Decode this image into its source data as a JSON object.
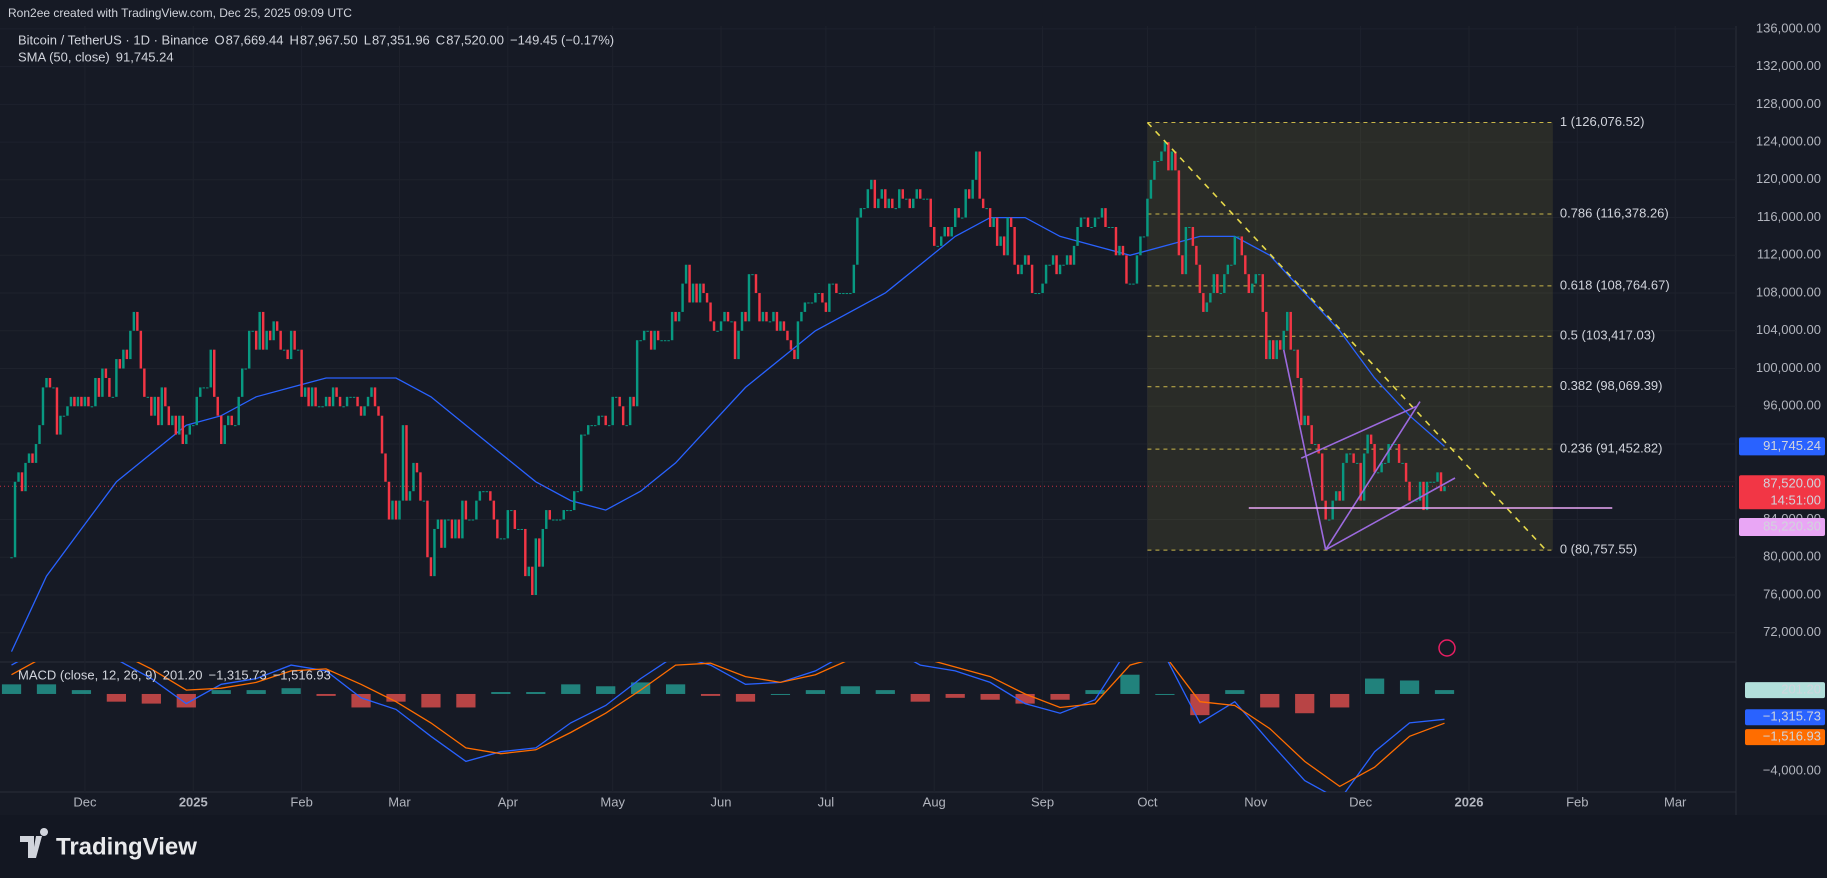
{
  "chart_data": {
    "type": "candlestick",
    "credit": "Ron2ee created with TradingView.com, Dec 25, 2025 09:09 UTC",
    "title": "Bitcoin / TetherUS · 1D · Binance",
    "ohlc": [
      {
        "label": "O",
        "value": "87,669.44"
      },
      {
        "label": "H",
        "value": "87,967.50"
      },
      {
        "label": "L",
        "value": "87,351.96"
      },
      {
        "label": "C",
        "value": "87,520.00"
      }
    ],
    "change": "−149.45 (−0.17%)",
    "up_color": "#089981",
    "down_color": "#f23645",
    "close": [
      80000,
      88000,
      89000,
      87000,
      90000,
      91000,
      90000,
      92000,
      94000,
      98000,
      99000,
      98000,
      98000,
      93000,
      95000,
      95000,
      96000,
      97000,
      96000,
      97000,
      96000,
      97000,
      96000,
      96000,
      99000,
      97000,
      100000,
      99000,
      97000,
      97000,
      101000,
      100000,
      102000,
      101000,
      104000,
      106000,
      104000,
      100000,
      97000,
      97000,
      95000,
      97000,
      94000,
      98000,
      96000,
      94000,
      95000,
      93000,
      95000,
      92000,
      93000,
      94000,
      94000,
      97000,
      98000,
      98000,
      98000,
      102000,
      97000,
      95000,
      92000,
      94000,
      95000,
      94000,
      94000,
      97000,
      100000,
      100000,
      104000,
      104000,
      102000,
      106000,
      102000,
      104000,
      103000,
      105000,
      104000,
      102000,
      102000,
      101000,
      104000,
      102000,
      102000,
      97000,
      98000,
      96000,
      98000,
      96000,
      96000,
      96000,
      97000,
      96000,
      98000,
      97000,
      96000,
      96000,
      97000,
      97000,
      97000,
      96000,
      95000,
      96000,
      97000,
      98000,
      96000,
      95000,
      91000,
      88000,
      84000,
      86000,
      84000,
      86000,
      94000,
      86000,
      87000,
      90000,
      89000,
      86000,
      86000,
      80000,
      78000,
      83000,
      84000,
      81000,
      84000,
      84000,
      82000,
      84000,
      82000,
      86000,
      84000,
      84000,
      84000,
      86000,
      87000,
      87000,
      87000,
      86000,
      84000,
      82000,
      82000,
      82000,
      85000,
      85000,
      83000,
      83000,
      83000,
      78000,
      79000,
      76000,
      82000,
      79000,
      83000,
      85000,
      84000,
      84000,
      84000,
      84000,
      85000,
      85000,
      85000,
      87000,
      87000,
      93000,
      93000,
      94000,
      94000,
      94000,
      95000,
      95000,
      94000,
      94000,
      97000,
      97000,
      96000,
      94000,
      94000,
      97000,
      96000,
      103000,
      103000,
      104000,
      104000,
      102000,
      104000,
      103000,
      103000,
      103000,
      103000,
      106000,
      105000,
      106000,
      109000,
      111000,
      107000,
      109000,
      107000,
      109000,
      108000,
      107000,
      105000,
      104000,
      104000,
      105000,
      106000,
      105000,
      105000,
      101000,
      104000,
      106000,
      105000,
      110000,
      110000,
      108000,
      105000,
      106000,
      105000,
      105000,
      106000,
      104000,
      105000,
      104000,
      103000,
      102000,
      101000,
      105000,
      106000,
      107000,
      107000,
      107000,
      108000,
      108000,
      107000,
      106000,
      109000,
      109000,
      108000,
      108000,
      108000,
      108000,
      108000,
      111000,
      116000,
      117000,
      117000,
      119000,
      120000,
      117000,
      118000,
      119000,
      117000,
      118000,
      117000,
      117000,
      119000,
      118000,
      118000,
      117000,
      118000,
      119000,
      118000,
      118000,
      118000,
      115000,
      113000,
      113000,
      114000,
      115000,
      114000,
      115000,
      117000,
      116000,
      116000,
      119000,
      118000,
      120000,
      123000,
      118000,
      117000,
      117000,
      115000,
      116000,
      113000,
      114000,
      112000,
      116000,
      115000,
      111000,
      110000,
      111000,
      112000,
      111000,
      108000,
      108000,
      108000,
      109000,
      111000,
      111000,
      112000,
      110000,
      111000,
      111000,
      112000,
      111000,
      113000,
      115000,
      116000,
      116000,
      115000,
      115000,
      116000,
      116000,
      117000,
      115000,
      115000,
      115000,
      112000,
      113000,
      112000,
      109000,
      109000,
      109000,
      112000,
      114000,
      114000,
      118000,
      120000,
      122000,
      122000,
      123000,
      124000,
      121000,
      123000,
      121000,
      112000,
      110000,
      115000,
      115000,
      113000,
      111000,
      108000,
      106000,
      107000,
      108000,
      110000,
      108000,
      108000,
      110000,
      111000,
      111000,
      114000,
      114000,
      112000,
      110000,
      108000,
      109000,
      110000,
      110000,
      106000,
      101000,
      103000,
      101000,
      103000,
      102000,
      104000,
      106000,
      102000,
      102000,
      99000,
      94000,
      95000,
      94000,
      92000,
      92000,
      91000,
      86000,
      84000,
      84000,
      86000,
      87000,
      86000,
      90000,
      91000,
      91000,
      90000,
      90000,
      86000,
      91000,
      93000,
      92000,
      89000,
      89000,
      90000,
      90000,
      92000,
      92000,
      92000,
      90000,
      90000,
      88000,
      86000,
      86000,
      86000,
      88000,
      85000,
      88000,
      88000,
      88000,
      89000,
      87000,
      87520
    ],
    "last_price_label": "87,520.00",
    "countdown": "14:51:00",
    "xlim": [
      -3.3,
      493.4
    ],
    "xticks": [
      {
        "value": 21,
        "label": "Dec"
      },
      {
        "value": 52,
        "label": "2025"
      },
      {
        "value": 83,
        "label": "Feb"
      },
      {
        "value": 111,
        "label": "Mar"
      },
      {
        "value": 142,
        "label": "Apr"
      },
      {
        "value": 172,
        "label": "May"
      },
      {
        "value": 203,
        "label": "Jun"
      },
      {
        "value": 233,
        "label": "Jul"
      },
      {
        "value": 264,
        "label": "Aug"
      },
      {
        "value": 295,
        "label": "Sep"
      },
      {
        "value": 325,
        "label": "Oct"
      },
      {
        "value": 356,
        "label": "Nov"
      },
      {
        "value": 386,
        "label": "Dec"
      },
      {
        "value": 417,
        "label": "2026"
      },
      {
        "value": 448,
        "label": "Feb"
      },
      {
        "value": 476,
        "label": "Mar"
      }
    ],
    "ylim": [
      68900,
      136300
    ],
    "yticks": [
      {
        "value": 136000,
        "label": "136,000.00"
      },
      {
        "value": 132000,
        "label": "132,000.00"
      },
      {
        "value": 128000,
        "label": "128,000.00"
      },
      {
        "value": 124000,
        "label": "124,000.00"
      },
      {
        "value": 120000,
        "label": "120,000.00"
      },
      {
        "value": 116000,
        "label": "116,000.00"
      },
      {
        "value": 112000,
        "label": "112,000.00"
      },
      {
        "value": 108000,
        "label": "108,000.00"
      },
      {
        "value": 104000,
        "label": "104,000.00"
      },
      {
        "value": 100000,
        "label": "100,000.00"
      },
      {
        "value": 96000,
        "label": "96,000.00"
      },
      {
        "value": 92000,
        "label": "92,000.00"
      },
      {
        "value": 88000,
        "label": "88,000.00"
      },
      {
        "value": 84000,
        "label": "84,000.00"
      },
      {
        "value": 80000,
        "label": "80,000.00"
      },
      {
        "value": 76000,
        "label": "76,000.00"
      },
      {
        "value": 72000,
        "label": "72,000.00"
      }
    ],
    "grid": true,
    "sma": {
      "name": "SMA (50, close)",
      "value_label": "91,745.24",
      "color": "#2962ff",
      "x": [
        0,
        10,
        20,
        30,
        40,
        50,
        60,
        70,
        80,
        90,
        100,
        110,
        120,
        130,
        140,
        150,
        160,
        170,
        180,
        190,
        200,
        210,
        220,
        230,
        240,
        250,
        260,
        270,
        280,
        290,
        300,
        310,
        320,
        330,
        340,
        350,
        360,
        370,
        380,
        390,
        400,
        410
      ],
      "values": [
        70000,
        78000,
        83000,
        88000,
        91000,
        94000,
        95000,
        97000,
        98000,
        99000,
        99000,
        99000,
        97000,
        94000,
        91000,
        88000,
        86000,
        85000,
        87000,
        90000,
        94000,
        98000,
        101000,
        104000,
        106000,
        108000,
        111000,
        114000,
        116000,
        116000,
        114000,
        113000,
        112000,
        113000,
        114000,
        114000,
        112000,
        108000,
        104000,
        99000,
        95000,
        91745.24
      ]
    },
    "fib": {
      "x": [
        325,
        441
      ],
      "color": "#c9b64a",
      "levels": [
        {
          "value": 126076.52,
          "label": "1 (126,076.52)"
        },
        {
          "value": 116378.26,
          "label": "0.786 (116,378.26)"
        },
        {
          "value": 108764.67,
          "label": "0.618 (108,764.67)"
        },
        {
          "value": 103417.03,
          "label": "0.5 (103,417.03)"
        },
        {
          "value": 98069.39,
          "label": "0.382 (98,069.39)"
        },
        {
          "value": 91452.82,
          "label": "0.236 (91,452.82)"
        },
        {
          "value": 80757.55,
          "label": "0 (80,757.55)"
        }
      ]
    },
    "trendlines": [
      {
        "x": [
          325,
          439
        ],
        "y": [
          126076.52,
          80757.55
        ],
        "color": "#e6d94a",
        "dashed": true
      },
      {
        "x": [
          364,
          376
        ],
        "y": [
          102000,
          80800
        ],
        "color": "#9c6ade",
        "dashed": false
      },
      {
        "x": [
          376,
          403
        ],
        "y": [
          80800,
          96500
        ],
        "color": "#9c6ade",
        "dashed": false
      },
      {
        "x": [
          369,
          402
        ],
        "y": [
          90500,
          96000
        ],
        "color": "#9c6ade",
        "dashed": false
      },
      {
        "x": [
          376,
          413
        ],
        "y": [
          80800,
          88400
        ],
        "color": "#9c6ade",
        "dashed": false
      }
    ],
    "horizontal_line": {
      "value": 85220.3,
      "label": "85,220.30",
      "x": [
        354,
        458
      ],
      "color": "#e9a6f5"
    },
    "macd": {
      "name": "MACD (close, 12, 26, 9)",
      "ylim": [
        -5090,
        1660
      ],
      "yticks": [
        {
          "value": -4000,
          "label": "−4,000.00"
        }
      ],
      "x": [
        0,
        10,
        20,
        30,
        40,
        50,
        60,
        70,
        80,
        90,
        100,
        110,
        120,
        130,
        140,
        150,
        160,
        170,
        180,
        190,
        200,
        210,
        220,
        230,
        240,
        250,
        260,
        270,
        280,
        290,
        300,
        310,
        320,
        330,
        340,
        350,
        360,
        370,
        380,
        390,
        400,
        410
      ],
      "histogram": {
        "value_label": "201.20",
        "values": [
          500,
          500,
          200,
          -400,
          -500,
          -700,
          200,
          200,
          300,
          -100,
          -700,
          -400,
          -700,
          -700,
          100,
          100,
          500,
          400,
          600,
          500,
          -100,
          -400,
          0,
          200,
          400,
          200,
          -400,
          -200,
          -300,
          -500,
          -300,
          200,
          1000,
          0,
          -1100,
          200,
          -700,
          -1000,
          -700,
          800,
          700,
          201.2
        ]
      },
      "macd_line": {
        "color": "#2962ff",
        "value_label": "−1,315.73",
        "values": [
          1500,
          2500,
          2800,
          1800,
          800,
          -500,
          500,
          800,
          1500,
          1200,
          -200,
          -800,
          -2200,
          -3500,
          -3000,
          -2800,
          -1500,
          -600,
          800,
          2000,
          1500,
          500,
          600,
          1200,
          2200,
          2500,
          1500,
          1200,
          600,
          -500,
          -1000,
          -300,
          2500,
          2000,
          -1500,
          -400,
          -2500,
          -4500,
          -5500,
          -3000,
          -1500,
          -1315.73
        ]
      },
      "signal_line": {
        "color": "#ff6d00",
        "value_label": "−1,516.93",
        "values": [
          1000,
          2000,
          2600,
          2200,
          1300,
          200,
          300,
          600,
          1200,
          1300,
          500,
          -400,
          -1500,
          -2800,
          -3100,
          -2900,
          -2000,
          -1000,
          200,
          1500,
          1600,
          900,
          600,
          1000,
          1800,
          2300,
          1900,
          1400,
          900,
          0,
          -700,
          -500,
          1500,
          2000,
          -400,
          -600,
          -1800,
          -3500,
          -4800,
          -3800,
          -2200,
          -1516.93
        ]
      }
    },
    "brand": "TradingView"
  }
}
